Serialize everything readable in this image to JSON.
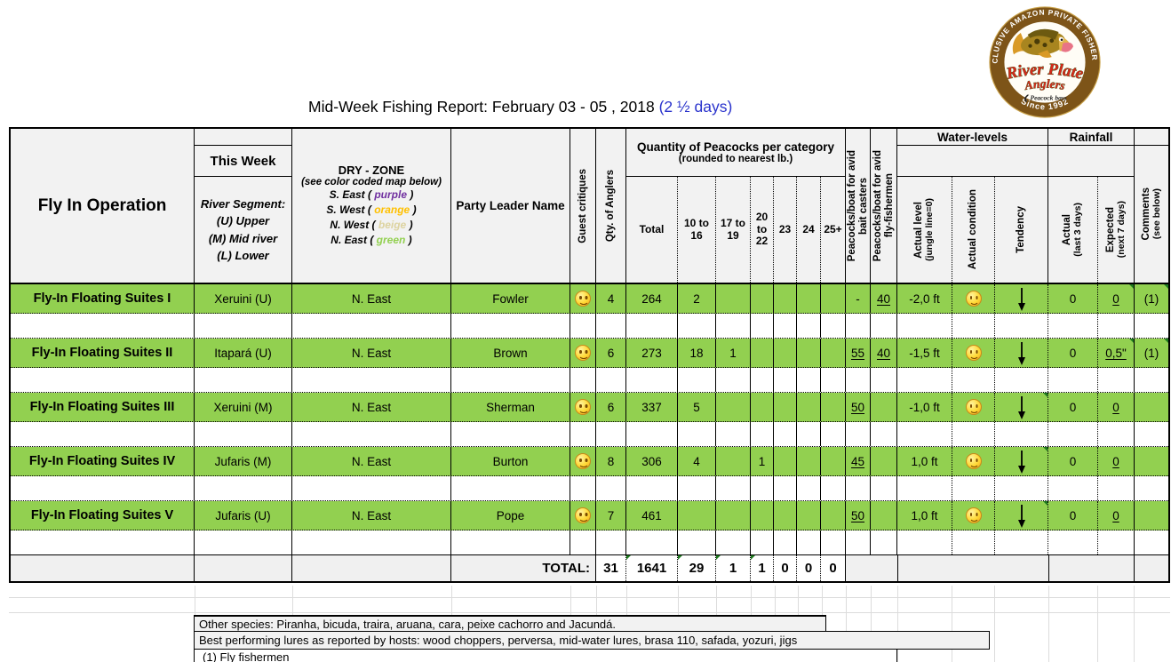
{
  "title": {
    "main": "Mid-Week Fishing Report:  February 03 - 05  , 2018",
    "highlight": "(2 ½ days)"
  },
  "colors": {
    "row_green": "#92d050",
    "header_bg": "#f2f2f2",
    "title_blue": "#2a33cc",
    "note_marker_green": "#1e7a1e"
  },
  "logo": {
    "arc_top": "EXCLUSIVE AMAZON PRIVATE FISHERIES",
    "arc_bottom": "Since 1992",
    "name_line1": "River Plate",
    "name_line2": "Anglers",
    "tagline_marker": "❮",
    "tagline": "Peacock bass"
  },
  "header": {
    "operation": "Fly In Operation",
    "this_week": "This Week",
    "segment_lines": [
      "River Segment:",
      "(U) Upper",
      "(M) Mid river",
      "(L) Lower"
    ],
    "zone_title": "DRY - ZONE",
    "zone_subtitle": "(see color coded map below)",
    "zones": [
      {
        "label": "S. East",
        "color_word": "purple",
        "color": "#7030a0"
      },
      {
        "label": "S. West",
        "color_word": "orange",
        "color": "#ffc000"
      },
      {
        "label": "N. West",
        "color_word": "beige",
        "color": "#ddd3a0"
      },
      {
        "label": "N. East",
        "color_word": "green",
        "color": "#92d050"
      }
    ],
    "leader": "Party Leader Name",
    "critiques": "Guest critiques",
    "anglers": "Qty. of Anglers",
    "peacocks_title": "Quantity of Peacocks per category",
    "peacocks_subtitle": "(rounded to nearest lb.)",
    "categories": [
      "Total",
      "10 to 16",
      "17 to 19",
      "20 to 22",
      "23",
      "24",
      "25+"
    ],
    "bait": {
      "l1": "Peacocks/boat for avid",
      "l2": "bait casters"
    },
    "fly": {
      "l1": "Peacocks/boat for avid",
      "l2": "fly-fishermen"
    },
    "water_title": "Water-levels",
    "water_cols": [
      {
        "l1": "Actual level",
        "l2": "(jungle line=0)"
      },
      {
        "l1": "Actual condition",
        "l2": ""
      },
      {
        "l1": "Tendency",
        "l2": ""
      }
    ],
    "rain_title": "Rainfall",
    "rain_cols": [
      {
        "l1": "Actual",
        "l2": "(last 3 days)"
      },
      {
        "l1": "Expected",
        "l2": "(next 7 days)"
      }
    ],
    "comments": {
      "l1": "Comments",
      "l2": "(see below)"
    }
  },
  "rows": [
    {
      "operation": "Fly-In Floating Suites I",
      "segment": "Xeruini (U)",
      "zone": "N. East",
      "leader": "Fowler",
      "critique": "smiley",
      "anglers": "4",
      "total": "264",
      "c10_16": "2",
      "c17_19": "",
      "c20_22": "",
      "c23": "",
      "c24": "",
      "c25": "",
      "bait": "-",
      "fly": "40",
      "level": "-2,0 ft",
      "condition": "smiley",
      "tendency": "down",
      "rain_actual": "0",
      "rain_expected": "0",
      "comment": "(1)",
      "markers": [
        "rain_expected",
        "comment"
      ]
    },
    {
      "operation": "Fly-In Floating Suites II",
      "segment": "Itapará (U)",
      "zone": "N. East",
      "leader": "Brown",
      "critique": "smiley",
      "anglers": "6",
      "total": "273",
      "c10_16": "18",
      "c17_19": "1",
      "c20_22": "",
      "c23": "",
      "c24": "",
      "c25": "",
      "bait": "55",
      "fly": "40",
      "level": "-1,5 ft",
      "condition": "smiley",
      "tendency": "down",
      "rain_actual": "0",
      "rain_expected": "0,5\"",
      "comment": "(1)",
      "markers": [
        "rain_expected",
        "comment"
      ]
    },
    {
      "operation": "Fly-In Floating Suites III",
      "segment": "Xeruini (M)",
      "zone": "N. East",
      "leader": "Sherman",
      "critique": "smiley",
      "anglers": "6",
      "total": "337",
      "c10_16": "5",
      "c17_19": "",
      "c20_22": "",
      "c23": "",
      "c24": "",
      "c25": "",
      "bait": "50",
      "fly": "",
      "level": "-1,0 ft",
      "condition": "smiley",
      "tendency": "down",
      "rain_actual": "0",
      "rain_expected": "0",
      "comment": "",
      "markers": [
        "tendency"
      ]
    },
    {
      "operation": "Fly-In Floating Suites IV",
      "segment": "Jufaris (M)",
      "zone": "N. East",
      "leader": "Burton",
      "critique": "smiley",
      "anglers": "8",
      "total": "306",
      "c10_16": "4",
      "c17_19": "",
      "c20_22": "1",
      "c23": "",
      "c24": "",
      "c25": "",
      "bait": "45",
      "fly": "",
      "level": "1,0 ft",
      "condition": "smiley",
      "tendency": "down",
      "rain_actual": "0",
      "rain_expected": "0",
      "comment": "",
      "markers": [
        "tendency"
      ]
    },
    {
      "operation": "Fly-In Floating Suites V",
      "segment": "Jufaris (U)",
      "zone": "N. East",
      "leader": "Pope",
      "critique": "smiley",
      "anglers": "7",
      "total": "461",
      "c10_16": "",
      "c17_19": "",
      "c20_22": "",
      "c23": "",
      "c24": "",
      "c25": "",
      "bait": "50",
      "fly": "",
      "level": "1,0 ft",
      "condition": "smiley",
      "tendency": "down",
      "rain_actual": "0",
      "rain_expected": "0",
      "comment": "",
      "markers": [
        "tendency"
      ]
    }
  ],
  "total_row": {
    "label": "TOTAL:",
    "anglers": "31",
    "values": [
      "1641",
      "29",
      "1",
      "1",
      "0",
      "0",
      "0"
    ],
    "marker_indices": [
      0,
      1,
      2,
      3
    ]
  },
  "notes": [
    "Other species: Piranha, bicuda, traira, aruana, cara, peixe cachorro and Jacundá.",
    "Best performing lures as reported by hosts: wood choppers, perversa, mid-water lures, brasa 110, safada, yozuri, jigs",
    "(1) Fly fishermen"
  ]
}
